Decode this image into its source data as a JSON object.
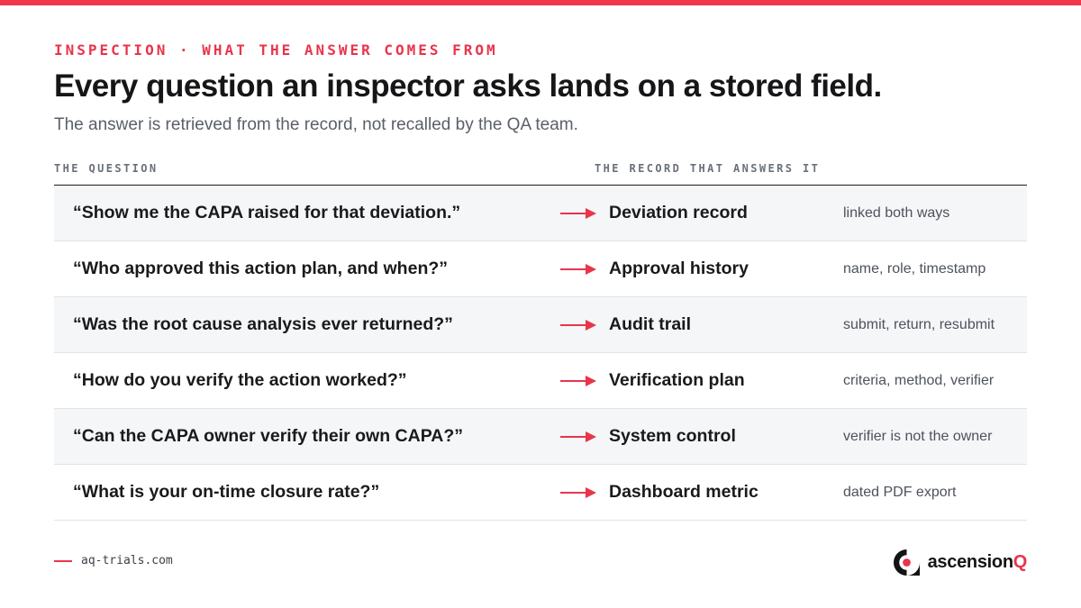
{
  "header": {
    "eyebrow": "INSPECTION · WHAT THE ANSWER COMES FROM",
    "title": "Every question an inspector asks lands on a stored field.",
    "subtitle": "The answer is retrieved from the record, not recalled by the QA team."
  },
  "table": {
    "col_question": "THE QUESTION",
    "col_record": "THE RECORD THAT ANSWERS IT",
    "rows": [
      {
        "question": "“Show me the CAPA raised for that deviation.”",
        "record": "Deviation record",
        "detail": "linked both ways"
      },
      {
        "question": "“Who approved this action plan, and when?”",
        "record": "Approval history",
        "detail": "name, role, timestamp"
      },
      {
        "question": "“Was the root cause analysis ever returned?”",
        "record": "Audit trail",
        "detail": "submit, return, resubmit"
      },
      {
        "question": "“How do you verify the action worked?”",
        "record": "Verification plan",
        "detail": "criteria, method, verifier"
      },
      {
        "question": "“Can the CAPA owner verify their own CAPA?”",
        "record": "System control",
        "detail": "verifier is not the owner"
      },
      {
        "question": "“What is your on-time closure rate?”",
        "record": "Dashboard metric",
        "detail": "dated PDF export"
      }
    ]
  },
  "footer": {
    "url": "aq-trials.com",
    "brand_main": "ascension",
    "brand_accent": "Q"
  },
  "colors": {
    "accent": "#e8354a",
    "row_shade": "#f5f6f8",
    "text": "#1a1a1c"
  },
  "icons": {
    "row_arrow": "arrow-right-icon",
    "logo": "ascensionq-logo"
  }
}
